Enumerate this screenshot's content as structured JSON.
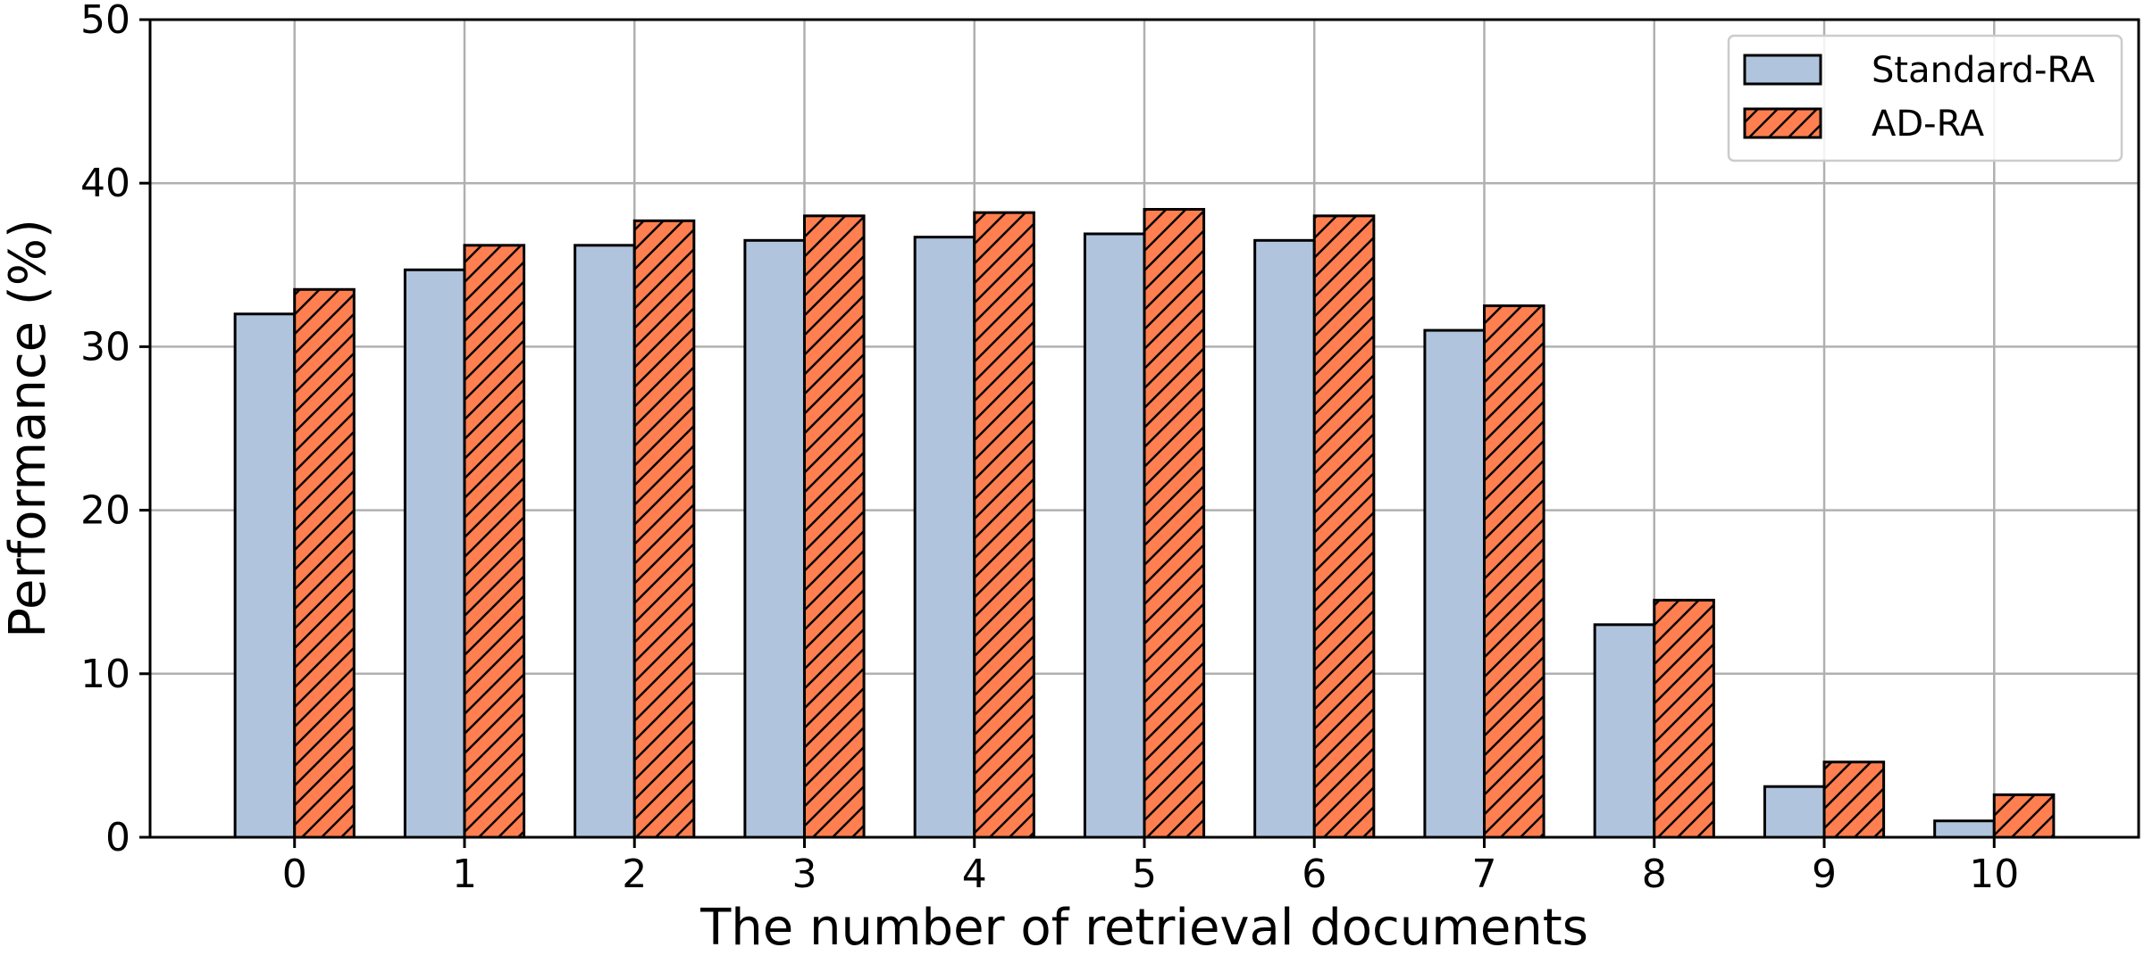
{
  "chart_data": {
    "type": "bar",
    "title": "",
    "xlabel": "The number of retrieval documents",
    "ylabel": "Performance (%)",
    "ylim": [
      0,
      50
    ],
    "yticks": [
      0,
      10,
      20,
      30,
      40,
      50
    ],
    "categories": [
      "0",
      "1",
      "2",
      "3",
      "4",
      "5",
      "6",
      "7",
      "8",
      "9",
      "10"
    ],
    "grid": true,
    "legend_position": "top-right",
    "series": [
      {
        "name": "Standard-RA",
        "color": "#b0c4de",
        "hatch": "none",
        "values": [
          32.0,
          34.7,
          36.2,
          36.5,
          36.7,
          36.9,
          36.5,
          31.0,
          13.0,
          3.1,
          1.0
        ]
      },
      {
        "name": "AD-RA",
        "color": "#ff7f50",
        "hatch": "diagonal",
        "values": [
          33.5,
          36.2,
          37.7,
          38.0,
          38.2,
          38.4,
          38.0,
          32.5,
          14.5,
          4.6,
          2.6
        ]
      }
    ]
  }
}
